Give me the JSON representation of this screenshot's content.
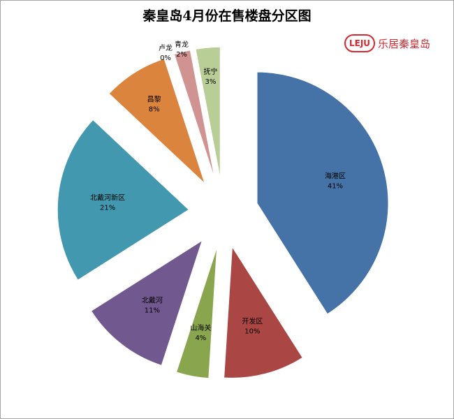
{
  "chart_data": {
    "type": "pie",
    "title": "秦皇岛4月份在售楼盘分区图",
    "series": [
      {
        "values": [
          41,
          10,
          4,
          11,
          21,
          8,
          0,
          2,
          3
        ],
        "labels": [
          "海港区",
          "开发区",
          "山海关",
          "北戴河",
          "北戴河新区",
          "昌黎",
          "卢龙",
          "青龙",
          "抚宁"
        ],
        "percent_labels": [
          "41%",
          "10%",
          "4%",
          "11%",
          "21%",
          "8%",
          "0%",
          "2%",
          "3%"
        ],
        "colors": [
          "#4572a7",
          "#aa4643",
          "#89a54e",
          "#71588f",
          "#4198af",
          "#db843d",
          "#93a9cf",
          "#d19392",
          "#b9cd96"
        ]
      }
    ],
    "exploded": true,
    "legend": "none"
  },
  "logo": {
    "mark_text": "LEJU",
    "brand_text": "乐居秦皇岛",
    "color": "#d7282f"
  }
}
